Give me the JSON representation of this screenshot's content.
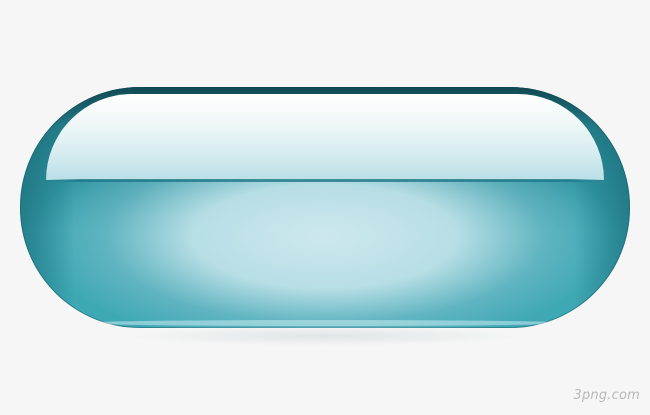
{
  "button": {
    "shape": "glossy-pill",
    "colors": {
      "rim": "#1f6f7a",
      "body": "#3aa6b2",
      "inner_glow": "#cde8ee",
      "highlight": "#ffffff"
    }
  },
  "watermark": {
    "text": "3png.com"
  },
  "background": "#f6f6f6"
}
